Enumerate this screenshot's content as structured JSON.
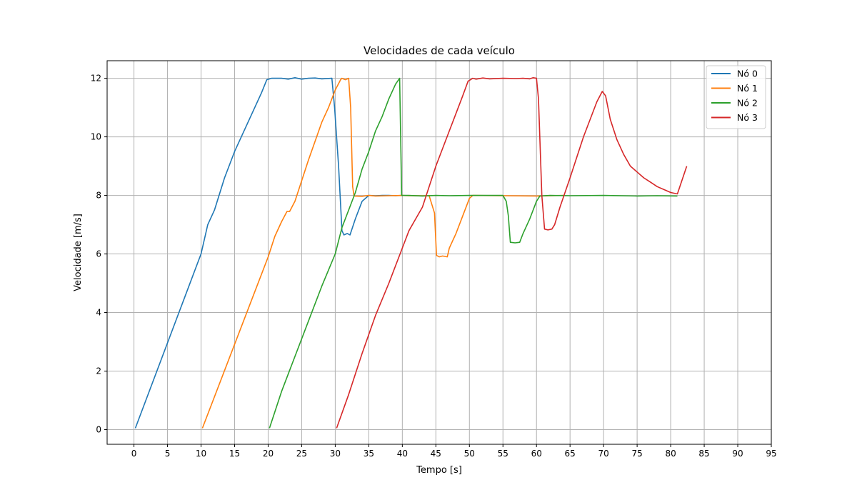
{
  "chart_data": {
    "type": "line",
    "title": "Velocidades de cada veículo",
    "xlabel": "Tempo [s]",
    "ylabel": "Velocidade [m/s]",
    "xlim": [
      -4,
      95
    ],
    "ylim": [
      -0.5,
      12.6
    ],
    "xticks": [
      0,
      5,
      10,
      15,
      20,
      25,
      30,
      35,
      40,
      45,
      50,
      55,
      60,
      65,
      70,
      75,
      80,
      85,
      90,
      95
    ],
    "yticks": [
      0,
      2,
      4,
      6,
      8,
      10,
      12
    ],
    "grid": true,
    "legend_position": "top-right",
    "series": [
      {
        "name": "Nó 0",
        "color": "#1f77b4",
        "points": [
          [
            0.2,
            0.05
          ],
          [
            10,
            6.0
          ],
          [
            11,
            7.0
          ],
          [
            12,
            7.5
          ],
          [
            13.5,
            8.6
          ],
          [
            15,
            9.5
          ],
          [
            17,
            10.5
          ],
          [
            19,
            11.5
          ],
          [
            19.8,
            11.95
          ],
          [
            20.5,
            12.0
          ],
          [
            22,
            12.0
          ],
          [
            23,
            11.97
          ],
          [
            24,
            12.02
          ],
          [
            25,
            11.97
          ],
          [
            26,
            12.0
          ],
          [
            27,
            12.01
          ],
          [
            28,
            11.98
          ],
          [
            29.5,
            12.0
          ],
          [
            29.9,
            11.0
          ],
          [
            30.5,
            9.0
          ],
          [
            31.0,
            6.8
          ],
          [
            31.3,
            6.65
          ],
          [
            31.8,
            6.7
          ],
          [
            32.2,
            6.65
          ],
          [
            33,
            7.2
          ],
          [
            34,
            7.8
          ],
          [
            35,
            8.0
          ],
          [
            36,
            7.99
          ],
          [
            37,
            8.0
          ],
          [
            38,
            8.0
          ],
          [
            39,
            7.99
          ],
          [
            40,
            8.0
          ]
        ]
      },
      {
        "name": "Nó 1",
        "color": "#ff7f0e",
        "points": [
          [
            10.2,
            0.05
          ],
          [
            20,
            5.9
          ],
          [
            21,
            6.6
          ],
          [
            22,
            7.1
          ],
          [
            22.8,
            7.45
          ],
          [
            23.2,
            7.45
          ],
          [
            24,
            7.8
          ],
          [
            26,
            9.2
          ],
          [
            28,
            10.5
          ],
          [
            29,
            11.0
          ],
          [
            30,
            11.6
          ],
          [
            30.8,
            11.95
          ],
          [
            31,
            12.0
          ],
          [
            31.5,
            11.95
          ],
          [
            32,
            12.0
          ],
          [
            32.3,
            11.0
          ],
          [
            32.6,
            8.3
          ],
          [
            32.8,
            7.98
          ],
          [
            34,
            7.97
          ],
          [
            35,
            8.0
          ],
          [
            36,
            7.98
          ],
          [
            38,
            7.99
          ],
          [
            40,
            8.0
          ],
          [
            41,
            7.99
          ],
          [
            44,
            7.99
          ],
          [
            44.8,
            7.4
          ],
          [
            45.1,
            5.95
          ],
          [
            45.5,
            5.9
          ],
          [
            46,
            5.93
          ],
          [
            46.7,
            5.9
          ],
          [
            47,
            6.2
          ],
          [
            48,
            6.7
          ],
          [
            49,
            7.3
          ],
          [
            50,
            7.9
          ],
          [
            50.5,
            8.0
          ],
          [
            55,
            7.99
          ],
          [
            60,
            7.98
          ],
          [
            64,
            8.0
          ]
        ]
      },
      {
        "name": "Nó 2",
        "color": "#2ca02c",
        "points": [
          [
            20.2,
            0.05
          ],
          [
            22,
            1.3
          ],
          [
            24,
            2.5
          ],
          [
            26,
            3.7
          ],
          [
            28,
            4.9
          ],
          [
            30,
            6.0
          ],
          [
            31,
            6.9
          ],
          [
            32,
            7.5
          ],
          [
            33,
            8.1
          ],
          [
            34,
            8.9
          ],
          [
            35,
            9.5
          ],
          [
            36,
            10.2
          ],
          [
            37,
            10.7
          ],
          [
            38,
            11.3
          ],
          [
            39,
            11.8
          ],
          [
            39.6,
            12.0
          ],
          [
            39.9,
            8.0
          ],
          [
            41,
            8.0
          ],
          [
            43,
            7.98
          ],
          [
            45,
            8.0
          ],
          [
            47,
            7.99
          ],
          [
            50,
            8.0
          ],
          [
            55,
            8.0
          ],
          [
            55.5,
            7.8
          ],
          [
            55.8,
            7.3
          ],
          [
            56.1,
            6.4
          ],
          [
            56.8,
            6.38
          ],
          [
            57.5,
            6.4
          ],
          [
            58,
            6.7
          ],
          [
            59,
            7.2
          ],
          [
            60,
            7.8
          ],
          [
            60.5,
            7.98
          ],
          [
            62,
            8.0
          ],
          [
            65,
            7.99
          ],
          [
            70,
            8.0
          ],
          [
            75,
            7.98
          ],
          [
            78,
            7.99
          ],
          [
            81,
            7.98
          ]
        ]
      },
      {
        "name": "Nó 3",
        "color": "#d62728",
        "points": [
          [
            30.2,
            0.05
          ],
          [
            32,
            1.2
          ],
          [
            34,
            2.6
          ],
          [
            36,
            3.9
          ],
          [
            38,
            5.0
          ],
          [
            40,
            6.2
          ],
          [
            41,
            6.8
          ],
          [
            42,
            7.2
          ],
          [
            43,
            7.6
          ],
          [
            44,
            8.3
          ],
          [
            45,
            9.0
          ],
          [
            46,
            9.6
          ],
          [
            47,
            10.2
          ],
          [
            48,
            10.8
          ],
          [
            49,
            11.4
          ],
          [
            49.8,
            11.9
          ],
          [
            50.5,
            12.0
          ],
          [
            51,
            11.97
          ],
          [
            52,
            12.01
          ],
          [
            53,
            11.98
          ],
          [
            55,
            12.0
          ],
          [
            57,
            11.99
          ],
          [
            58,
            12.0
          ],
          [
            59,
            11.98
          ],
          [
            59.5,
            12.02
          ],
          [
            60,
            12.0
          ],
          [
            60.3,
            11.3
          ],
          [
            60.8,
            8.0
          ],
          [
            61.2,
            6.85
          ],
          [
            61.7,
            6.82
          ],
          [
            62.3,
            6.85
          ],
          [
            62.7,
            7.0
          ],
          [
            63.5,
            7.6
          ],
          [
            65,
            8.6
          ],
          [
            66,
            9.3
          ],
          [
            67,
            10.0
          ],
          [
            68,
            10.6
          ],
          [
            69,
            11.2
          ],
          [
            69.8,
            11.55
          ],
          [
            70.3,
            11.4
          ],
          [
            71,
            10.6
          ],
          [
            72,
            9.9
          ],
          [
            73,
            9.4
          ],
          [
            74,
            9.0
          ],
          [
            75,
            8.8
          ],
          [
            76,
            8.6
          ],
          [
            77,
            8.45
          ],
          [
            78,
            8.3
          ],
          [
            79,
            8.2
          ],
          [
            80,
            8.1
          ],
          [
            81,
            8.05
          ],
          [
            82.4,
            9.0
          ]
        ]
      }
    ]
  }
}
